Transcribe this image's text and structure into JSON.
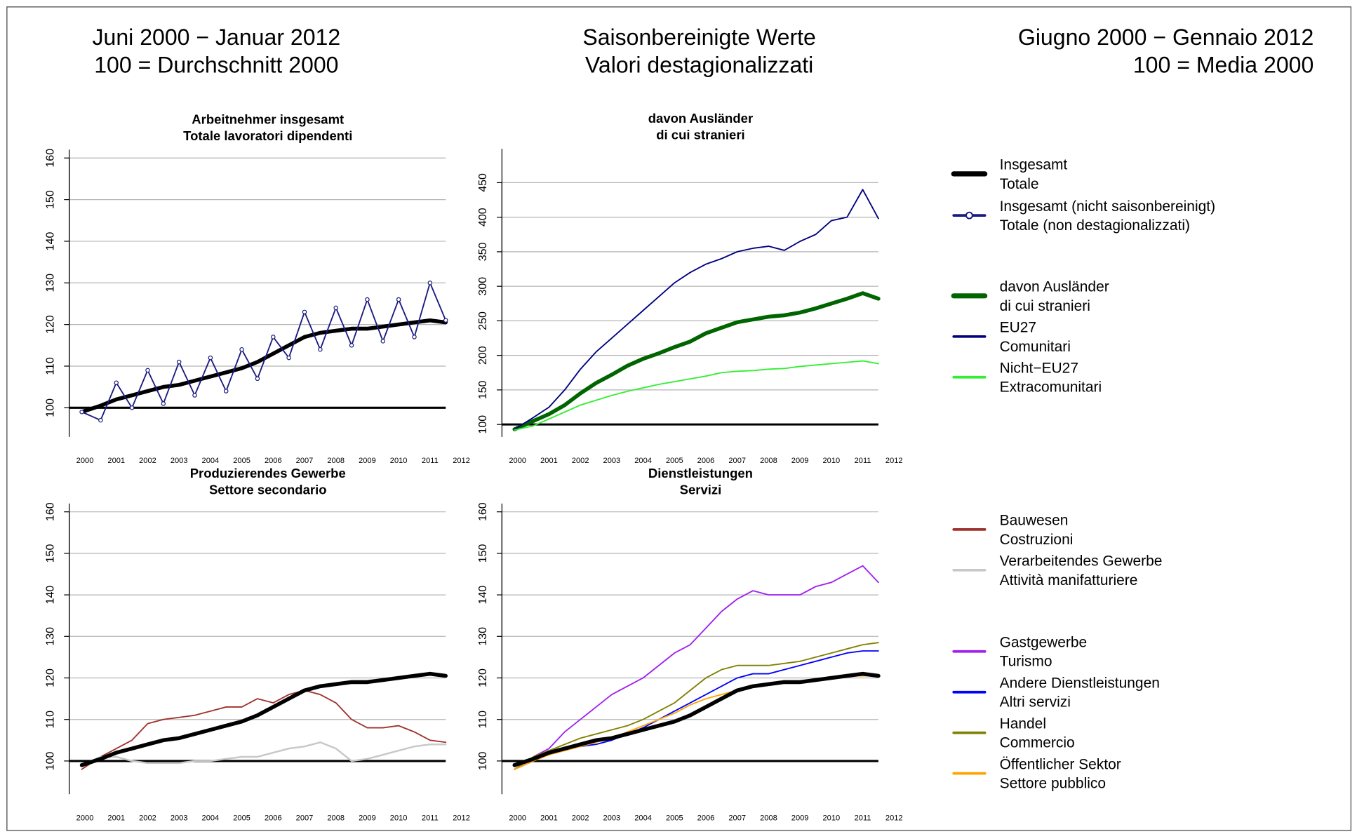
{
  "header": {
    "left": [
      "Juni 2000 − Januar 2012",
      "100 = Durchschnitt 2000"
    ],
    "center": [
      "Saisonbereinigte Werte",
      "Valori destagionalizzati"
    ],
    "right": [
      "Giugno 2000 − Gennaio 2012",
      "100 = Media 2000"
    ]
  },
  "chart_data": [
    {
      "type": "line",
      "title": "Arbeitnehmer insgesamt\nTotale lavoratori dipendenti",
      "x": [
        2000.4,
        2001,
        2001.5,
        2002,
        2002.5,
        2003,
        2003.5,
        2004,
        2004.5,
        2005,
        2005.5,
        2006,
        2006.5,
        2007,
        2007.5,
        2008,
        2008.5,
        2009,
        2009.5,
        2010,
        2010.5,
        2011,
        2011.5,
        2012
      ],
      "xlim": [
        2000,
        2012
      ],
      "xticks": [
        {
          "value": 2000.5,
          "label": "2000"
        },
        {
          "value": 2001.5,
          "label": "2001"
        },
        {
          "value": 2002.5,
          "label": "2002"
        },
        {
          "value": 2003.5,
          "label": "2003"
        },
        {
          "value": 2004.5,
          "label": "2004"
        },
        {
          "value": 2005.5,
          "label": "2005"
        },
        {
          "value": 2006.5,
          "label": "2006"
        },
        {
          "value": 2007.5,
          "label": "2007"
        },
        {
          "value": 2008.5,
          "label": "2008"
        },
        {
          "value": 2009.5,
          "label": "2009"
        },
        {
          "value": 2010.5,
          "label": "2010"
        },
        {
          "value": 2011.5,
          "label": "2011"
        },
        {
          "value": 2012.5,
          "label": "2012"
        }
      ],
      "ylim": [
        93,
        162
      ],
      "yticks": [
        100,
        110,
        120,
        130,
        140,
        150,
        160
      ],
      "grid": true,
      "baseline": 100,
      "series": [
        {
          "name": "Insgesamt\nTotale",
          "color": "#000000",
          "linewidth": 4.5,
          "values": [
            99,
            100.5,
            102,
            103,
            104,
            105,
            105.5,
            106.5,
            107.5,
            108.5,
            109.5,
            111,
            113,
            115,
            117,
            118,
            118.5,
            119,
            119,
            119.5,
            120,
            120.5,
            121,
            120.5
          ]
        },
        {
          "name": "Insgesamt (nicht saisonbereinigt)\nTotale (non destagionalizzati)",
          "color": "#1a1a80",
          "linewidth": 1.5,
          "marker": "circle",
          "values": [
            99,
            97,
            106,
            100,
            109,
            101,
            111,
            103,
            112,
            104,
            114,
            107,
            117,
            112,
            123,
            114,
            124,
            115,
            126,
            116,
            126,
            117,
            130,
            121
          ]
        }
      ]
    },
    {
      "type": "line",
      "title": "davon Ausländer\ndi cui stranieri",
      "x": [
        2000.4,
        2001,
        2001.5,
        2002,
        2002.5,
        2003,
        2003.5,
        2004,
        2004.5,
        2005,
        2005.5,
        2006,
        2006.5,
        2007,
        2007.5,
        2008,
        2008.5,
        2009,
        2009.5,
        2010,
        2010.5,
        2011,
        2011.5,
        2012
      ],
      "xlim": [
        2000,
        2012
      ],
      "xticks": [
        {
          "value": 2000.5,
          "label": "2000"
        },
        {
          "value": 2001.5,
          "label": "2001"
        },
        {
          "value": 2002.5,
          "label": "2002"
        },
        {
          "value": 2003.5,
          "label": "2003"
        },
        {
          "value": 2004.5,
          "label": "2004"
        },
        {
          "value": 2005.5,
          "label": "2005"
        },
        {
          "value": 2006.5,
          "label": "2006"
        },
        {
          "value": 2007.5,
          "label": "2007"
        },
        {
          "value": 2008.5,
          "label": "2008"
        },
        {
          "value": 2009.5,
          "label": "2009"
        },
        {
          "value": 2010.5,
          "label": "2010"
        },
        {
          "value": 2011.5,
          "label": "2011"
        },
        {
          "value": 2012.5,
          "label": "2012"
        }
      ],
      "ylim": [
        82,
        499
      ],
      "yticks": [
        100,
        150,
        200,
        250,
        300,
        350,
        400,
        450
      ],
      "grid": true,
      "baseline": 100,
      "series": [
        {
          "name": "davon Ausländer\ndi cui stranieri",
          "color": "#006400",
          "linewidth": 4.5,
          "values": [
            93,
            105,
            115,
            128,
            145,
            160,
            172,
            185,
            195,
            203,
            212,
            220,
            232,
            240,
            248,
            252,
            256,
            258,
            262,
            268,
            275,
            282,
            290,
            282
          ]
        },
        {
          "name": "EU27\nComunitari",
          "color": "#000080",
          "linewidth": 1.5,
          "values": [
            93,
            110,
            125,
            150,
            180,
            205,
            225,
            245,
            265,
            285,
            305,
            320,
            332,
            340,
            350,
            355,
            358,
            352,
            365,
            375,
            395,
            400,
            440,
            398
          ]
        },
        {
          "name": "Nicht−EU27\nExtracomunitari",
          "color": "#33ee33",
          "linewidth": 1.5,
          "values": [
            92,
            98,
            108,
            118,
            128,
            135,
            142,
            148,
            153,
            158,
            162,
            166,
            170,
            175,
            177,
            178,
            180,
            181,
            184,
            186,
            188,
            190,
            192,
            188
          ]
        }
      ]
    },
    {
      "type": "line",
      "title": "Produzierendes Gewerbe\nSettore secondario",
      "x": [
        2000.4,
        2001,
        2001.5,
        2002,
        2002.5,
        2003,
        2003.5,
        2004,
        2004.5,
        2005,
        2005.5,
        2006,
        2006.5,
        2007,
        2007.5,
        2008,
        2008.5,
        2009,
        2009.5,
        2010,
        2010.5,
        2011,
        2011.5,
        2012
      ],
      "xlim": [
        2000,
        2012
      ],
      "xticks": [
        {
          "value": 2000.5,
          "label": "2000"
        },
        {
          "value": 2001.5,
          "label": "2001"
        },
        {
          "value": 2002.5,
          "label": "2002"
        },
        {
          "value": 2003.5,
          "label": "2003"
        },
        {
          "value": 2004.5,
          "label": "2004"
        },
        {
          "value": 2005.5,
          "label": "2005"
        },
        {
          "value": 2006.5,
          "label": "2006"
        },
        {
          "value": 2007.5,
          "label": "2007"
        },
        {
          "value": 2008.5,
          "label": "2008"
        },
        {
          "value": 2009.5,
          "label": "2009"
        },
        {
          "value": 2010.5,
          "label": "2010"
        },
        {
          "value": 2011.5,
          "label": "2011"
        },
        {
          "value": 2012.5,
          "label": "2012"
        }
      ],
      "ylim": [
        92,
        162
      ],
      "yticks": [
        100,
        110,
        120,
        130,
        140,
        150,
        160
      ],
      "grid": true,
      "baseline": 100,
      "series": [
        {
          "name": "Bauwesen\nCostruzioni",
          "color": "#a0322d",
          "linewidth": 1.5,
          "values": [
            98,
            101,
            103,
            105,
            109,
            110,
            110.5,
            111,
            112,
            113,
            113,
            115,
            114,
            116,
            117,
            116,
            114,
            110,
            108,
            108,
            108.5,
            107,
            105,
            104.5
          ]
        },
        {
          "name": "Verarbeitendes Gewerbe\nAttività manifatturiere",
          "color": "#c8c8c8",
          "linewidth": 2,
          "values": [
            99,
            101,
            101,
            100,
            99.5,
            99.5,
            99.5,
            100,
            100,
            100.5,
            101,
            101,
            102,
            103,
            103.5,
            104.5,
            103,
            100,
            100.5,
            101.5,
            102.5,
            103.5,
            104,
            104
          ]
        },
        {
          "color": "#000000",
          "linewidth": 4.5,
          "values": [
            99,
            100.5,
            102,
            103,
            104,
            105,
            105.5,
            106.5,
            107.5,
            108.5,
            109.5,
            111,
            113,
            115,
            117,
            118,
            118.5,
            119,
            119,
            119.5,
            120,
            120.5,
            121,
            120.5
          ]
        }
      ]
    },
    {
      "type": "line",
      "title": "Dienstleistungen\nServizi",
      "x": [
        2000.4,
        2001,
        2001.5,
        2002,
        2002.5,
        2003,
        2003.5,
        2004,
        2004.5,
        2005,
        2005.5,
        2006,
        2006.5,
        2007,
        2007.5,
        2008,
        2008.5,
        2009,
        2009.5,
        2010,
        2010.5,
        2011,
        2011.5,
        2012
      ],
      "xlim": [
        2000,
        2012
      ],
      "xticks": [
        {
          "value": 2000.5,
          "label": "2000"
        },
        {
          "value": 2001.5,
          "label": "2001"
        },
        {
          "value": 2002.5,
          "label": "2002"
        },
        {
          "value": 2003.5,
          "label": "2003"
        },
        {
          "value": 2004.5,
          "label": "2004"
        },
        {
          "value": 2005.5,
          "label": "2005"
        },
        {
          "value": 2006.5,
          "label": "2006"
        },
        {
          "value": 2007.5,
          "label": "2007"
        },
        {
          "value": 2008.5,
          "label": "2008"
        },
        {
          "value": 2009.5,
          "label": "2009"
        },
        {
          "value": 2010.5,
          "label": "2010"
        },
        {
          "value": 2011.5,
          "label": "2011"
        },
        {
          "value": 2012.5,
          "label": "2012"
        }
      ],
      "ylim": [
        92,
        162
      ],
      "yticks": [
        100,
        110,
        120,
        130,
        140,
        150,
        160
      ],
      "grid": true,
      "baseline": 100,
      "series": [
        {
          "name": "Gastgewerbe\nTurismo",
          "color": "#a020f0",
          "linewidth": 1.5,
          "values": [
            98,
            101,
            103,
            107,
            110,
            113,
            116,
            118,
            120,
            123,
            126,
            128,
            132,
            136,
            139,
            141,
            140,
            140,
            140,
            142,
            143,
            145,
            147,
            143
          ]
        },
        {
          "name": "Andere Dienstleistungen\nAltri servizi",
          "color": "#0000ff",
          "linewidth": 1.5,
          "values": [
            98,
            100,
            102,
            103,
            103.5,
            104,
            105,
            106.5,
            108,
            110,
            112,
            114,
            116,
            118,
            120,
            121,
            121,
            122,
            123,
            124,
            125,
            126,
            126.5,
            126.5
          ]
        },
        {
          "name": "Handel\nCommercio",
          "color": "#808000",
          "linewidth": 1.5,
          "values": [
            98,
            101,
            102.5,
            104,
            105.5,
            106.5,
            107.5,
            108.5,
            110,
            112,
            114,
            117,
            120,
            122,
            123,
            123,
            123,
            123.5,
            124,
            125,
            126,
            127,
            128,
            128.5
          ]
        },
        {
          "name": "Öffentlicher Sektor\nSettore pubblico",
          "color": "#ffa500",
          "linewidth": 1.5,
          "values": [
            98,
            100,
            101.5,
            102.5,
            103.5,
            104.5,
            105.5,
            107,
            108.5,
            110,
            111.5,
            113.5,
            115,
            116,
            117,
            118,
            118.5,
            119,
            119,
            119.5,
            120,
            120.5,
            120.5,
            120.5
          ]
        },
        {
          "color": "#000000",
          "linewidth": 4.5,
          "values": [
            99,
            100.5,
            102,
            103,
            104,
            105,
            105.5,
            106.5,
            107.5,
            108.5,
            109.5,
            111,
            113,
            115,
            117,
            118,
            118.5,
            119,
            119,
            119.5,
            120,
            120.5,
            121,
            120.5
          ]
        }
      ]
    }
  ]
}
